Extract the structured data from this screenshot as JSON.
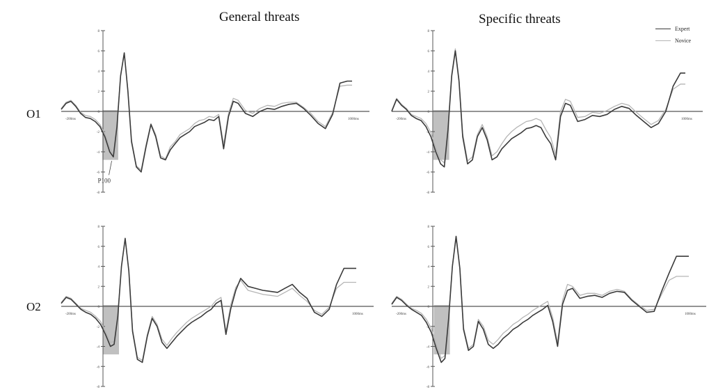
{
  "columns": [
    "General threats",
    "Specific threats"
  ],
  "rows": [
    "O1",
    "O2"
  ],
  "legend": [
    {
      "name": "Expert",
      "color": "#3a3a3a"
    },
    {
      "name": "Novice",
      "color": "#b5b5b5"
    }
  ],
  "colors": {
    "expert": "#3a3a3a",
    "novice": "#b5b5b5",
    "window": "#8c8c8c",
    "axis": "#555555"
  },
  "chart_data": [
    {
      "type": "line",
      "row": "O1",
      "column": "General threats",
      "x_range_ms": [
        -200,
        1000
      ],
      "x_tick_labels": [
        "-200ms",
        "1000ms"
      ],
      "ylim": [
        -8,
        8
      ],
      "y_ticks": [
        8,
        6,
        4,
        2,
        0,
        -2,
        -4,
        -6,
        -8
      ],
      "shaded_window": {
        "x": [
          -30,
          35
        ],
        "label": "P100"
      },
      "series": [
        {
          "name": "Expert",
          "x": [
            -200,
            -180,
            -160,
            -140,
            -120,
            -100,
            -80,
            -60,
            -40,
            -20,
            0,
            15,
            30,
            45,
            60,
            75,
            90,
            110,
            130,
            150,
            170,
            190,
            210,
            230,
            250,
            270,
            290,
            310,
            330,
            350,
            370,
            390,
            410,
            430,
            450,
            470,
            490,
            510,
            530,
            560,
            590,
            620,
            650,
            680,
            710,
            740,
            770,
            800,
            830,
            860,
            890,
            920,
            950,
            980,
            1000
          ],
          "y": [
            0.2,
            0.8,
            1.0,
            0.5,
            -0.2,
            -0.6,
            -0.7,
            -1.0,
            -1.5,
            -2.5,
            -4.0,
            -4.5,
            -1.5,
            3.5,
            5.8,
            2.0,
            -3.0,
            -5.5,
            -6.0,
            -3.5,
            -1.3,
            -2.5,
            -4.6,
            -4.8,
            -3.8,
            -3.2,
            -2.6,
            -2.3,
            -2.0,
            -1.5,
            -1.3,
            -1.1,
            -0.8,
            -0.9,
            -0.5,
            -3.7,
            -0.5,
            1.0,
            0.8,
            -0.2,
            -0.5,
            0.0,
            0.3,
            0.2,
            0.5,
            0.7,
            0.8,
            0.3,
            -0.4,
            -1.2,
            -1.7,
            -0.3,
            2.8,
            3.0,
            3.0
          ]
        },
        {
          "name": "Novice",
          "x": [
            -200,
            -180,
            -160,
            -140,
            -120,
            -100,
            -80,
            -60,
            -40,
            -20,
            0,
            15,
            30,
            45,
            60,
            75,
            90,
            110,
            130,
            150,
            170,
            190,
            210,
            230,
            250,
            270,
            290,
            310,
            330,
            350,
            370,
            390,
            410,
            430,
            450,
            470,
            490,
            510,
            530,
            560,
            590,
            620,
            650,
            680,
            710,
            740,
            770,
            800,
            830,
            860,
            890,
            920,
            950,
            980,
            1000
          ],
          "y": [
            0.3,
            0.9,
            1.1,
            0.6,
            -0.1,
            -0.4,
            -0.5,
            -0.8,
            -1.3,
            -2.2,
            -3.6,
            -4.2,
            -1.3,
            3.6,
            5.7,
            2.2,
            -2.8,
            -5.4,
            -5.8,
            -3.3,
            -1.2,
            -2.3,
            -4.4,
            -4.7,
            -3.5,
            -3.0,
            -2.3,
            -2.0,
            -1.7,
            -1.2,
            -0.9,
            -0.8,
            -0.5,
            -0.6,
            -0.3,
            -3.3,
            -0.2,
            1.3,
            1.1,
            0.1,
            -0.2,
            0.3,
            0.6,
            0.5,
            0.8,
            0.9,
            0.9,
            0.4,
            -0.2,
            -1.0,
            -1.5,
            -0.1,
            2.5,
            2.6,
            2.6
          ]
        }
      ]
    },
    {
      "type": "line",
      "row": "O1",
      "column": "Specific threats",
      "x_range_ms": [
        -200,
        1000
      ],
      "x_tick_labels": [
        "-200ms",
        "1000ms"
      ],
      "ylim": [
        -8,
        8
      ],
      "y_ticks": [
        8,
        6,
        4,
        2,
        0,
        -2,
        -4,
        -6,
        -8
      ],
      "shaded_window": {
        "x": [
          -30,
          35
        ],
        "label": ""
      },
      "series": [
        {
          "name": "Expert",
          "x": [
            -200,
            -180,
            -160,
            -140,
            -120,
            -100,
            -80,
            -60,
            -40,
            -20,
            0,
            15,
            30,
            45,
            60,
            75,
            90,
            110,
            130,
            150,
            170,
            190,
            210,
            230,
            250,
            270,
            290,
            310,
            330,
            350,
            370,
            390,
            410,
            430,
            450,
            470,
            490,
            510,
            530,
            560,
            590,
            620,
            650,
            680,
            710,
            740,
            770,
            800,
            830,
            860,
            890,
            920,
            950,
            980,
            1000
          ],
          "y": [
            0.0,
            1.2,
            0.6,
            0.2,
            -0.4,
            -0.7,
            -0.9,
            -1.5,
            -2.5,
            -4.0,
            -5.2,
            -5.5,
            -1.8,
            3.5,
            6.0,
            3.0,
            -2.5,
            -5.2,
            -4.8,
            -2.5,
            -1.6,
            -2.8,
            -4.8,
            -4.5,
            -3.7,
            -3.2,
            -2.7,
            -2.4,
            -2.1,
            -1.7,
            -1.6,
            -1.4,
            -1.6,
            -2.5,
            -3.2,
            -4.8,
            -0.5,
            0.8,
            0.6,
            -1.0,
            -0.8,
            -0.4,
            -0.5,
            -0.3,
            0.2,
            0.5,
            0.3,
            -0.4,
            -1.0,
            -1.6,
            -1.2,
            0.0,
            2.5,
            3.8,
            3.8
          ]
        },
        {
          "name": "Novice",
          "x": [
            -200,
            -180,
            -160,
            -140,
            -120,
            -100,
            -80,
            -60,
            -40,
            -20,
            0,
            15,
            30,
            45,
            60,
            75,
            90,
            110,
            130,
            150,
            170,
            190,
            210,
            230,
            250,
            270,
            290,
            310,
            330,
            350,
            370,
            390,
            410,
            430,
            450,
            470,
            490,
            510,
            530,
            560,
            590,
            620,
            650,
            680,
            710,
            740,
            770,
            800,
            830,
            860,
            890,
            920,
            950,
            980,
            1000
          ],
          "y": [
            0.1,
            1.3,
            0.7,
            0.3,
            -0.3,
            -0.5,
            -0.7,
            -1.2,
            -2.1,
            -3.6,
            -4.8,
            -5.1,
            -1.5,
            3.7,
            6.2,
            3.2,
            -2.2,
            -4.9,
            -4.5,
            -2.3,
            -1.3,
            -2.5,
            -4.4,
            -4.0,
            -3.2,
            -2.5,
            -2.0,
            -1.6,
            -1.3,
            -1.0,
            -0.9,
            -0.7,
            -0.9,
            -1.8,
            -2.6,
            -4.3,
            0.0,
            1.2,
            1.0,
            -0.6,
            -0.5,
            -0.1,
            -0.2,
            0.1,
            0.5,
            0.8,
            0.6,
            -0.1,
            -0.7,
            -1.3,
            -0.9,
            0.2,
            2.2,
            2.7,
            2.7
          ]
        }
      ]
    },
    {
      "type": "line",
      "row": "O2",
      "column": "General threats",
      "x_range_ms": [
        -200,
        1000
      ],
      "x_tick_labels": [
        "-200ms",
        "1000ms"
      ],
      "ylim": [
        -8,
        8
      ],
      "y_ticks": [
        8,
        6,
        4,
        2,
        0,
        -2,
        -4,
        -6,
        -8
      ],
      "shaded_window": {
        "x": [
          -30,
          35
        ],
        "label": ""
      },
      "series": [
        {
          "name": "Expert",
          "x": [
            -200,
            -180,
            -160,
            -140,
            -120,
            -100,
            -80,
            -60,
            -40,
            -20,
            0,
            15,
            30,
            45,
            60,
            75,
            90,
            110,
            130,
            150,
            170,
            190,
            210,
            230,
            250,
            270,
            290,
            310,
            330,
            350,
            370,
            390,
            410,
            430,
            450,
            470,
            490,
            510,
            530,
            560,
            590,
            620,
            650,
            680,
            710,
            740,
            770,
            800,
            830,
            860,
            890,
            920,
            950,
            980,
            1000
          ],
          "y": [
            0.3,
            0.9,
            0.7,
            0.2,
            -0.3,
            -0.6,
            -0.8,
            -1.2,
            -1.8,
            -2.8,
            -4.0,
            -3.8,
            -1.0,
            4.0,
            6.8,
            3.5,
            -2.5,
            -5.3,
            -5.6,
            -3.0,
            -1.2,
            -2.0,
            -3.6,
            -4.2,
            -3.6,
            -3.0,
            -2.5,
            -2.0,
            -1.6,
            -1.3,
            -1.0,
            -0.6,
            -0.3,
            0.3,
            0.6,
            -2.8,
            -0.2,
            1.6,
            2.8,
            2.0,
            1.8,
            1.6,
            1.5,
            1.4,
            1.8,
            2.2,
            1.4,
            0.8,
            -0.6,
            -1.0,
            -0.3,
            2.2,
            3.8,
            3.8,
            3.8
          ]
        },
        {
          "name": "Novice",
          "x": [
            -200,
            -180,
            -160,
            -140,
            -120,
            -100,
            -80,
            -60,
            -40,
            -20,
            0,
            15,
            30,
            45,
            60,
            75,
            90,
            110,
            130,
            150,
            170,
            190,
            210,
            230,
            250,
            270,
            290,
            310,
            330,
            350,
            370,
            390,
            410,
            430,
            450,
            470,
            490,
            510,
            530,
            560,
            590,
            620,
            650,
            680,
            710,
            740,
            770,
            800,
            830,
            860,
            890,
            920,
            950,
            980,
            1000
          ],
          "y": [
            0.4,
            1.0,
            0.8,
            0.3,
            -0.2,
            -0.4,
            -0.6,
            -1.0,
            -1.5,
            -2.5,
            -3.6,
            -3.5,
            -0.8,
            4.1,
            6.7,
            3.6,
            -2.3,
            -5.1,
            -5.4,
            -2.8,
            -1.0,
            -1.8,
            -3.3,
            -3.9,
            -3.2,
            -2.6,
            -2.1,
            -1.6,
            -1.2,
            -0.9,
            -0.6,
            -0.3,
            0.0,
            0.6,
            0.9,
            -2.5,
            0.2,
            1.9,
            2.6,
            1.6,
            1.4,
            1.2,
            1.1,
            1.0,
            1.4,
            1.8,
            1.1,
            0.5,
            -0.4,
            -0.8,
            -0.1,
            1.8,
            2.4,
            2.4,
            2.4
          ]
        }
      ]
    },
    {
      "type": "line",
      "row": "O2",
      "column": "Specific threats",
      "x_range_ms": [
        -200,
        1000
      ],
      "x_tick_labels": [
        "-200ms",
        "1000ms"
      ],
      "ylim": [
        -8,
        8
      ],
      "y_ticks": [
        8,
        6,
        4,
        2,
        0,
        -2,
        -4,
        -6,
        -8
      ],
      "shaded_window": {
        "x": [
          -30,
          35
        ],
        "label": ""
      },
      "series": [
        {
          "name": "Expert",
          "x": [
            -200,
            -180,
            -160,
            -140,
            -120,
            -100,
            -80,
            -60,
            -40,
            -20,
            0,
            15,
            30,
            45,
            60,
            75,
            90,
            110,
            130,
            150,
            170,
            190,
            210,
            230,
            250,
            270,
            290,
            310,
            330,
            350,
            370,
            390,
            410,
            430,
            450,
            470,
            490,
            510,
            530,
            560,
            590,
            620,
            650,
            680,
            710,
            740,
            770,
            800,
            830,
            860,
            890,
            920,
            950,
            980,
            1000
          ],
          "y": [
            0.2,
            0.9,
            0.6,
            0.1,
            -0.3,
            -0.6,
            -0.9,
            -1.6,
            -2.6,
            -4.2,
            -5.6,
            -5.2,
            -1.2,
            4.0,
            7.0,
            3.8,
            -2.3,
            -4.4,
            -4.0,
            -1.5,
            -2.3,
            -3.8,
            -4.2,
            -3.8,
            -3.2,
            -2.8,
            -2.3,
            -2.0,
            -1.6,
            -1.3,
            -0.9,
            -0.6,
            -0.3,
            0.1,
            -1.5,
            -4.0,
            0.2,
            1.6,
            1.8,
            0.8,
            1.0,
            1.1,
            0.9,
            1.3,
            1.5,
            1.4,
            0.6,
            0.0,
            -0.6,
            -0.5,
            1.5,
            3.3,
            5.0,
            5.0,
            5.0
          ]
        },
        {
          "name": "Novice",
          "x": [
            -200,
            -180,
            -160,
            -140,
            -120,
            -100,
            -80,
            -60,
            -40,
            -20,
            0,
            15,
            30,
            45,
            60,
            75,
            90,
            110,
            130,
            150,
            170,
            190,
            210,
            230,
            250,
            270,
            290,
            310,
            330,
            350,
            370,
            390,
            410,
            430,
            450,
            470,
            490,
            510,
            530,
            560,
            590,
            620,
            650,
            680,
            710,
            740,
            770,
            800,
            830,
            860,
            890,
            920,
            950,
            980,
            1000
          ],
          "y": [
            0.3,
            1.0,
            0.7,
            0.2,
            -0.2,
            -0.4,
            -0.7,
            -1.3,
            -2.2,
            -3.8,
            -5.2,
            -4.9,
            -1.0,
            4.1,
            6.8,
            3.9,
            -2.1,
            -4.2,
            -3.8,
            -1.3,
            -2.0,
            -3.4,
            -3.8,
            -3.3,
            -2.7,
            -2.3,
            -1.8,
            -1.5,
            -1.1,
            -0.8,
            -0.4,
            -0.1,
            0.2,
            0.5,
            -1.1,
            -3.6,
            0.6,
            2.2,
            2.0,
            1.1,
            1.3,
            1.3,
            1.1,
            1.5,
            1.7,
            1.5,
            0.7,
            0.1,
            -0.4,
            -0.3,
            1.2,
            2.6,
            3.0,
            3.0,
            3.0
          ]
        }
      ]
    }
  ]
}
